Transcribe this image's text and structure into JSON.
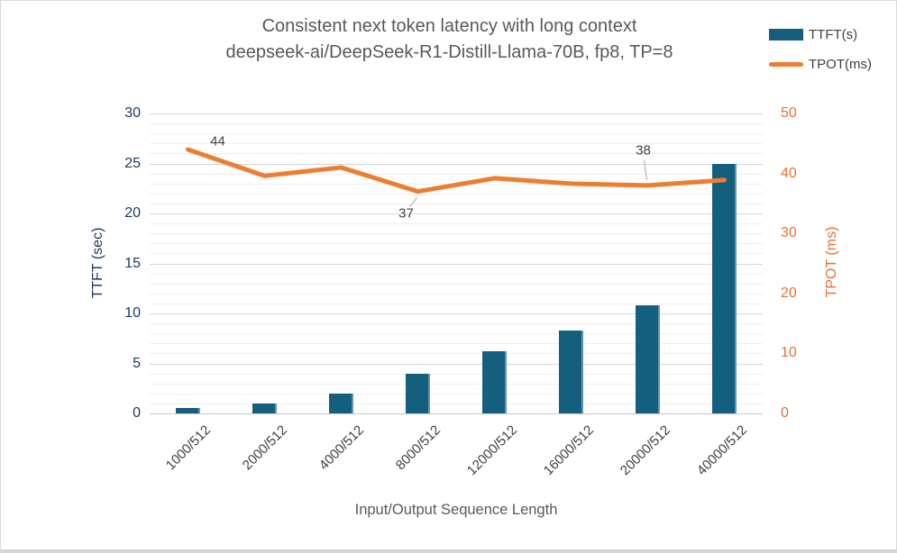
{
  "chart_data": {
    "type": "combo",
    "title": "Consistent next token latency with long context",
    "subtitle": "deepseek-ai/DeepSeek-R1-Distill-Llama-70B, fp8, TP=8",
    "categories": [
      "1000/512",
      "2000/512",
      "4000/512",
      "8000/512",
      "12000/512",
      "16000/512",
      "20000/512",
      "40000/512"
    ],
    "series": [
      {
        "name": "TTFT(s)",
        "type": "bar",
        "axis": "left",
        "color": "#155F7E",
        "values": [
          0.5,
          1.0,
          2.0,
          4.0,
          6.2,
          8.3,
          10.8,
          25.0
        ]
      },
      {
        "name": "TPOT(ms)",
        "type": "line",
        "axis": "right",
        "color": "#ED7D31",
        "values": [
          44,
          39.6,
          41,
          37,
          39.2,
          38.3,
          38,
          38.9
        ]
      }
    ],
    "annotations": [
      {
        "series_index": 1,
        "point_index": 0,
        "text": "44"
      },
      {
        "series_index": 1,
        "point_index": 3,
        "text": "37"
      },
      {
        "series_index": 1,
        "point_index": 6,
        "text": "38"
      }
    ],
    "axes": {
      "left": {
        "label": "TTFT (sec)",
        "min": 0,
        "max": 30,
        "major_unit": 5,
        "minor_unit": 1,
        "ticks": [
          0,
          5,
          10,
          15,
          20,
          25,
          30
        ],
        "color": "#1F3864"
      },
      "right": {
        "label": "TPOT (ms)",
        "min": 0,
        "max": 50,
        "ticks": [
          0,
          10,
          20,
          30,
          40,
          50
        ],
        "color": "#E97132"
      },
      "x": {
        "label": "Input/Output Sequence Length",
        "color": "#595959"
      }
    },
    "legend": {
      "position": "top-right",
      "entries": [
        {
          "label": "TTFT(s)",
          "swatch": "bar",
          "color": "#155F7E"
        },
        {
          "label": "TPOT(ms)",
          "swatch": "line",
          "color": "#ED7D31"
        }
      ]
    },
    "grid": {
      "minor_color": "#EFEFEF",
      "major_color": "#D6D6D6",
      "on": true
    }
  }
}
